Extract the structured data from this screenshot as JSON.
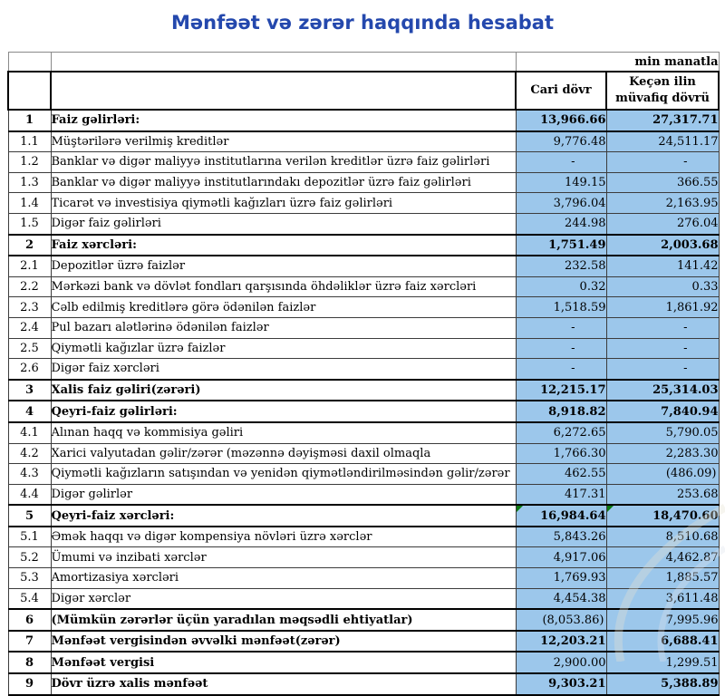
{
  "title": "Mənfəət və zərər haqqında hesabat",
  "colors": {
    "title_blue": "#2448AD",
    "cell_blue": "#9CC7EB",
    "flag_green": "#0B7A12"
  },
  "table": {
    "unit_note": "min manatla",
    "columns": [
      "Cari dövr",
      "Keçən ilin müvafiq dövrü"
    ],
    "rows": [
      {
        "no": "1",
        "label": "Faiz gəlirləri:",
        "current": "13,966.66",
        "previous": "27,317.71",
        "section": true,
        "values_bold": true
      },
      {
        "no": "1.1",
        "label": "Müştərilərə verilmiş kreditlər",
        "current": "9,776.48",
        "previous": "24,511.17",
        "section": false,
        "values_bold": false
      },
      {
        "no": "1.2",
        "label": "Banklar və digər maliyyə institutlarına verilən kreditlər üzrə faiz gəlirləri",
        "current": "-",
        "previous": "-",
        "section": false,
        "values_bold": false
      },
      {
        "no": "1.3",
        "label": "Banklar və digər maliyyə institutlarındakı depozitlər üzrə faiz gəlirləri",
        "current": "149.15",
        "previous": "366.55",
        "section": false,
        "values_bold": false
      },
      {
        "no": "1.4",
        "label": "Ticarət və investisiya qiymətli kağızları üzrə faiz gəlirləri",
        "current": "3,796.04",
        "previous": "2,163.95",
        "section": false,
        "values_bold": false
      },
      {
        "no": "1.5",
        "label": "Digər faiz gəlirləri",
        "current": "244.98",
        "previous": "276.04",
        "section": false,
        "values_bold": false
      },
      {
        "no": "2",
        "label": "Faiz xərcləri:",
        "current": "1,751.49",
        "previous": "2,003.68",
        "section": true,
        "values_bold": true
      },
      {
        "no": "2.1",
        "label": "Depozitlər üzrə faizlər",
        "current": "232.58",
        "previous": "141.42",
        "section": false,
        "values_bold": false
      },
      {
        "no": "2.2",
        "label": "Mərkəzi bank və dövlət fondları qarşısında öhdəliklər üzrə faiz xərcləri",
        "current": "0.32",
        "previous": "0.33",
        "section": false,
        "values_bold": false
      },
      {
        "no": "2.3",
        "label": "Cəlb edilmiş kreditlərə görə ödənilən faizlər",
        "current": "1,518.59",
        "previous": "1,861.92",
        "section": false,
        "values_bold": false
      },
      {
        "no": "2.4",
        "label": "Pul bazarı alətlərinə ödənilən faizlər",
        "current": "-",
        "previous": "-",
        "section": false,
        "values_bold": false
      },
      {
        "no": "2.5",
        "label": "Qiymətli kağızlar üzrə faizlər",
        "current": "-",
        "previous": "-",
        "section": false,
        "values_bold": false
      },
      {
        "no": "2.6",
        "label": "Digər faiz xərcləri",
        "current": "-",
        "previous": "-",
        "section": false,
        "values_bold": false
      },
      {
        "no": "3",
        "label": "Xalis faiz gəliri(zərəri)",
        "current": "12,215.17",
        "previous": "25,314.03",
        "section": true,
        "values_bold": true
      },
      {
        "no": "4",
        "label": "Qeyri-faiz gəlirləri:",
        "current": "8,918.82",
        "previous": "7,840.94",
        "section": true,
        "values_bold": true
      },
      {
        "no": "4.1",
        "label": "Alınan haqq və kommisiya gəliri",
        "current": "6,272.65",
        "previous": "5,790.05",
        "section": false,
        "values_bold": false
      },
      {
        "no": "4.2",
        "label": "Xarici valyutadan gəlir/zərər (məzənnə dəyişməsi daxil olmaqla",
        "current": "1,766.30",
        "previous": "2,283.30",
        "section": false,
        "values_bold": false
      },
      {
        "no": "4.3",
        "label": "Qiymətli kağızların satışından və yenidən qiymətləndirilməsindən gəlir/zərər",
        "current": "462.55",
        "previous": "(486.09)",
        "section": false,
        "values_bold": false
      },
      {
        "no": "4.4",
        "label": "Digər gəlirlər",
        "current": "417.31",
        "previous": "253.68",
        "section": false,
        "values_bold": false
      },
      {
        "no": "5",
        "label": "Qeyri-faiz xərcləri:",
        "current": "16,984.64",
        "previous": "18,470.60",
        "section": true,
        "values_bold": true,
        "flags": [
          0,
          1
        ]
      },
      {
        "no": "5.1",
        "label": "Əmək haqqı və digər kompensiya növləri üzrə xərclər",
        "current": "5,843.26",
        "previous": "8,510.68",
        "section": false,
        "values_bold": false
      },
      {
        "no": "5.2",
        "label": "Ümumi və inzibati xərclər",
        "current": "4,917.06",
        "previous": "4,462.87",
        "section": false,
        "values_bold": false
      },
      {
        "no": "5.3",
        "label": "Amortizasiya xərcləri",
        "current": "1,769.93",
        "previous": "1,885.57",
        "section": false,
        "values_bold": false
      },
      {
        "no": "5.4",
        "label": "Digər xərclər",
        "current": "4,454.38",
        "previous": "3,611.48",
        "section": false,
        "values_bold": false
      },
      {
        "no": "6",
        "label": "(Mümkün zərərlər üçün yaradılan məqsədli ehtiyatlar)",
        "current": "(8,053.86)",
        "previous": "7,995.96",
        "section": true,
        "values_bold": false
      },
      {
        "no": "7",
        "label": "Mənfəət vergisindən əvvəlki mənfəət(zərər)",
        "current": "12,203.21",
        "previous": "6,688.41",
        "section": true,
        "values_bold": true
      },
      {
        "no": "8",
        "label": "Mənfəət vergisi",
        "current": "2,900.00",
        "previous": "1,299.51",
        "section": true,
        "values_bold": false
      },
      {
        "no": "9",
        "label": "Dövr üzrə xalis mənfəət",
        "current": "9,303.21",
        "previous": "5,388.89",
        "section": true,
        "values_bold": true
      }
    ]
  }
}
